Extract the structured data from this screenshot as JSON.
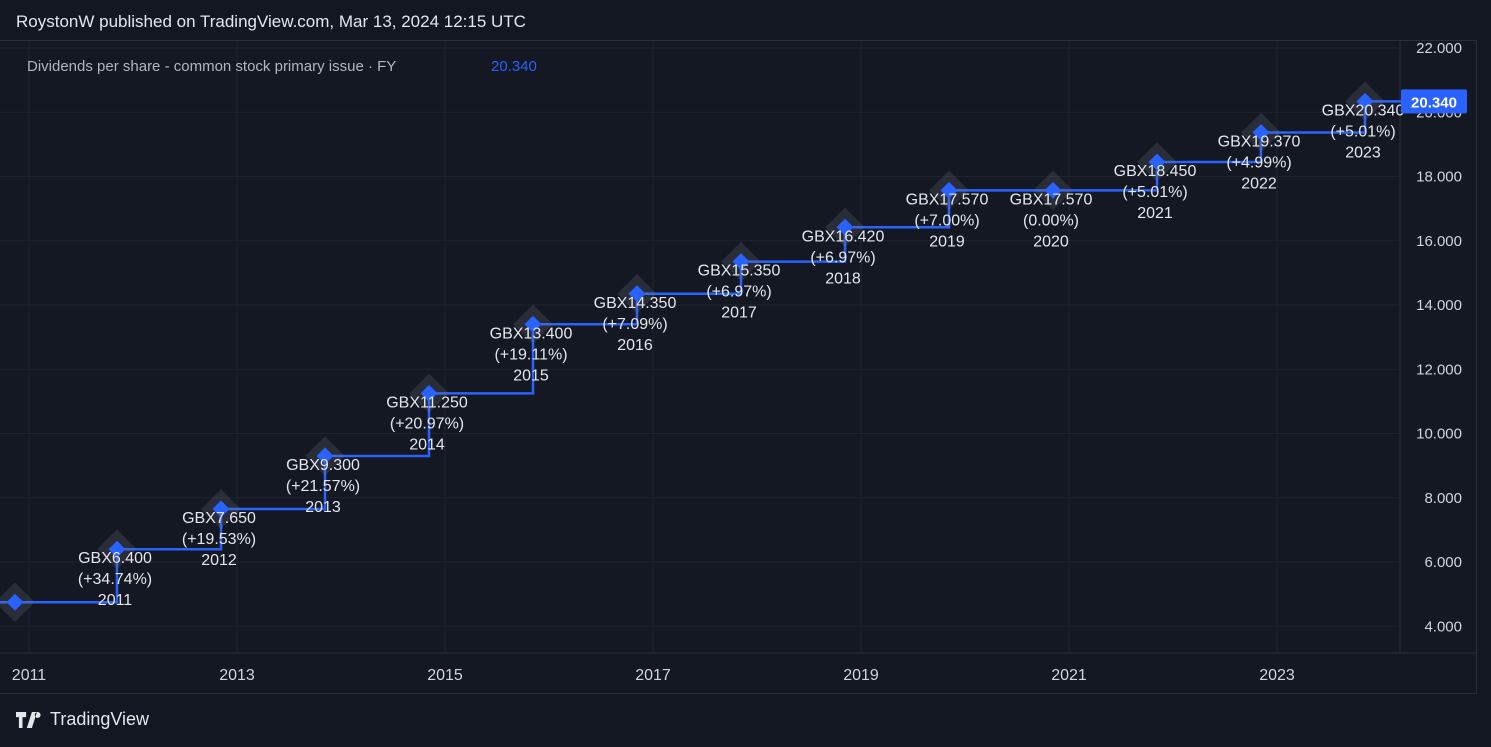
{
  "header": {
    "published_text": "RoystonW published on TradingView.com, Mar 13, 2024 12:15 UTC"
  },
  "legend": {
    "series_label": "Dividends per share - common stock primary issue · FY",
    "last_value": "20.340"
  },
  "footer": {
    "brand": "TradingView"
  },
  "colors": {
    "background": "#131722",
    "grid": "#1f2330",
    "line": "#2962ff",
    "text": "#d1d4dc",
    "price_tag_bg": "#2962ff"
  },
  "chart_data": {
    "type": "line",
    "step": true,
    "title": "",
    "xlabel": "",
    "ylabel": "",
    "ylim": [
      3.2,
      22.0
    ],
    "y_ticks": [
      "4.000",
      "6.000",
      "8.000",
      "10.000",
      "12.000",
      "14.000",
      "16.000",
      "18.000",
      "20.000",
      "22.000"
    ],
    "x_ticks": [
      "2011",
      "2013",
      "2015",
      "2017",
      "2019",
      "2021",
      "2023"
    ],
    "last_price_tag": "20.340",
    "series": [
      {
        "name": "Dividends per share - common stock primary issue · FY",
        "points": [
          {
            "year": 2010,
            "value": 4.75,
            "value_label": "",
            "change_label": "",
            "year_label": ""
          },
          {
            "year": 2011,
            "value": 6.4,
            "value_label": "GBX6.400",
            "change_label": "(+34.74%)",
            "year_label": "2011"
          },
          {
            "year": 2012,
            "value": 7.65,
            "value_label": "GBX7.650",
            "change_label": "(+19.53%)",
            "year_label": "2012"
          },
          {
            "year": 2013,
            "value": 9.3,
            "value_label": "GBX9.300",
            "change_label": "(+21.57%)",
            "year_label": "2013"
          },
          {
            "year": 2014,
            "value": 11.25,
            "value_label": "GBX11.250",
            "change_label": "(+20.97%)",
            "year_label": "2014"
          },
          {
            "year": 2015,
            "value": 13.4,
            "value_label": "GBX13.400",
            "change_label": "(+19.11%)",
            "year_label": "2015"
          },
          {
            "year": 2016,
            "value": 14.35,
            "value_label": "GBX14.350",
            "change_label": "(+7.09%)",
            "year_label": "2016"
          },
          {
            "year": 2017,
            "value": 15.35,
            "value_label": "GBX15.350",
            "change_label": "(+6.97%)",
            "year_label": "2017"
          },
          {
            "year": 2018,
            "value": 16.42,
            "value_label": "GBX16.420",
            "change_label": "(+6.97%)",
            "year_label": "2018"
          },
          {
            "year": 2019,
            "value": 17.57,
            "value_label": "GBX17.570",
            "change_label": "(+7.00%)",
            "year_label": "2019"
          },
          {
            "year": 2020,
            "value": 17.57,
            "value_label": "GBX17.570",
            "change_label": "(0.00%)",
            "year_label": "2020"
          },
          {
            "year": 2021,
            "value": 18.45,
            "value_label": "GBX18.450",
            "change_label": "(+5.01%)",
            "year_label": "2021"
          },
          {
            "year": 2022,
            "value": 19.37,
            "value_label": "GBX19.370",
            "change_label": "(+4.99%)",
            "year_label": "2022"
          },
          {
            "year": 2023,
            "value": 20.34,
            "value_label": "GBX20.340",
            "change_label": "(+5.01%)",
            "year_label": "2023"
          }
        ]
      }
    ]
  }
}
